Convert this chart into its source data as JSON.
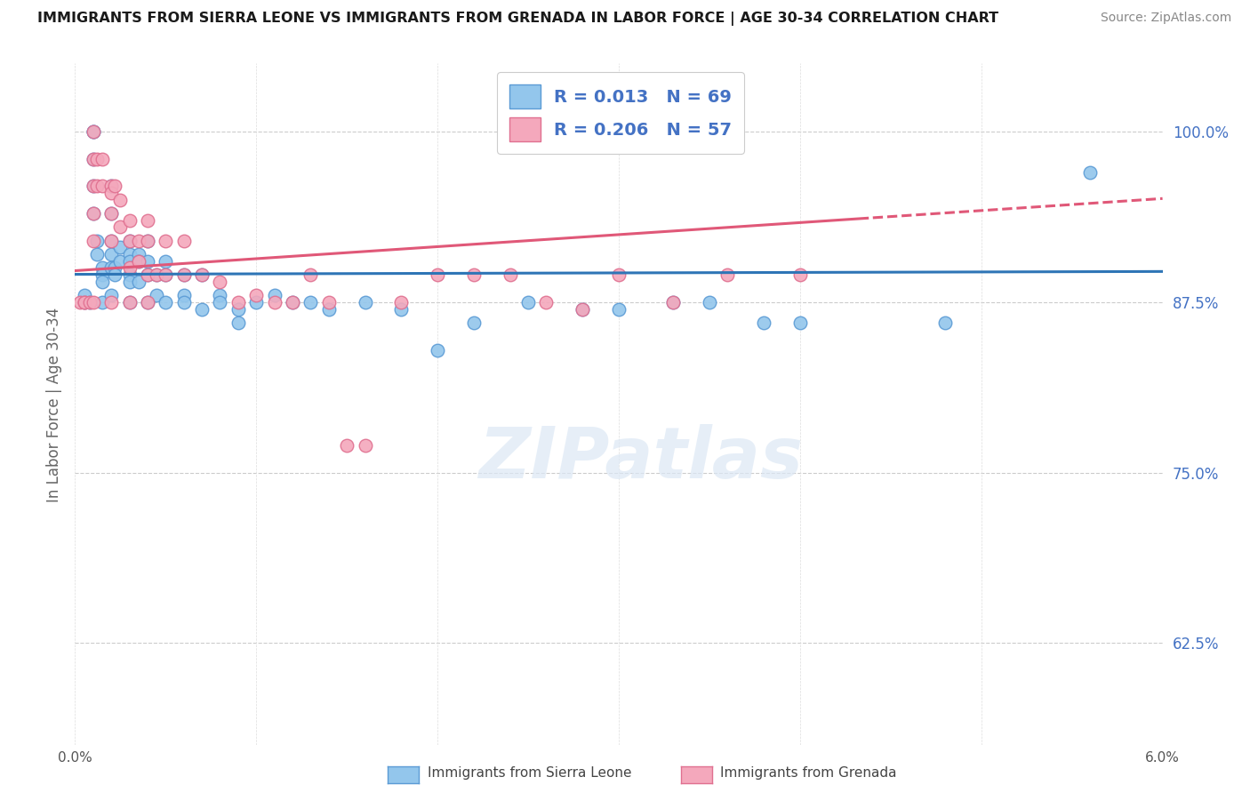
{
  "title": "IMMIGRANTS FROM SIERRA LEONE VS IMMIGRANTS FROM GRENADA IN LABOR FORCE | AGE 30-34 CORRELATION CHART",
  "source": "Source: ZipAtlas.com",
  "ylabel": "In Labor Force | Age 30-34",
  "ytick_labels": [
    "62.5%",
    "75.0%",
    "87.5%",
    "100.0%"
  ],
  "ytick_values": [
    0.625,
    0.75,
    0.875,
    1.0
  ],
  "xlim": [
    0.0,
    0.06
  ],
  "ylim": [
    0.55,
    1.05
  ],
  "watermark": "ZIPatlas",
  "legend_label1": "Immigrants from Sierra Leone",
  "legend_label2": "Immigrants from Grenada",
  "color_sierra": "#93C6EC",
  "color_grenada": "#F4A8BC",
  "edge_color_sierra": "#5B9BD5",
  "edge_color_grenada": "#E07090",
  "line_color_sierra": "#2E75B6",
  "line_color_grenada": "#E05878",
  "sierra_R": 0.013,
  "grenada_R": 0.206,
  "sierra_N": 69,
  "grenada_N": 57,
  "scatter_sierra_x": [
    0.0005,
    0.0005,
    0.0008,
    0.001,
    0.001,
    0.001,
    0.001,
    0.001,
    0.0012,
    0.0012,
    0.0015,
    0.0015,
    0.0015,
    0.0015,
    0.002,
    0.002,
    0.002,
    0.002,
    0.002,
    0.002,
    0.0022,
    0.0022,
    0.0025,
    0.0025,
    0.003,
    0.003,
    0.003,
    0.003,
    0.003,
    0.003,
    0.0035,
    0.0035,
    0.0035,
    0.004,
    0.004,
    0.004,
    0.004,
    0.0045,
    0.0045,
    0.005,
    0.005,
    0.005,
    0.006,
    0.006,
    0.006,
    0.007,
    0.007,
    0.008,
    0.008,
    0.009,
    0.009,
    0.01,
    0.011,
    0.012,
    0.013,
    0.014,
    0.016,
    0.018,
    0.02,
    0.022,
    0.025,
    0.028,
    0.03,
    0.033,
    0.035,
    0.038,
    0.04,
    0.048,
    0.056
  ],
  "scatter_sierra_y": [
    0.875,
    0.88,
    0.875,
    1.0,
    1.0,
    0.98,
    0.96,
    0.94,
    0.92,
    0.91,
    0.9,
    0.895,
    0.89,
    0.875,
    0.96,
    0.94,
    0.92,
    0.91,
    0.9,
    0.88,
    0.9,
    0.895,
    0.915,
    0.905,
    0.92,
    0.91,
    0.905,
    0.895,
    0.89,
    0.875,
    0.91,
    0.905,
    0.89,
    0.92,
    0.905,
    0.895,
    0.875,
    0.895,
    0.88,
    0.905,
    0.895,
    0.875,
    0.895,
    0.88,
    0.875,
    0.895,
    0.87,
    0.88,
    0.875,
    0.87,
    0.86,
    0.875,
    0.88,
    0.875,
    0.875,
    0.87,
    0.875,
    0.87,
    0.84,
    0.86,
    0.875,
    0.87,
    0.87,
    0.875,
    0.875,
    0.86,
    0.86,
    0.86,
    0.97
  ],
  "scatter_grenada_x": [
    0.0003,
    0.0005,
    0.0005,
    0.0008,
    0.001,
    0.001,
    0.001,
    0.001,
    0.001,
    0.001,
    0.0012,
    0.0012,
    0.0015,
    0.0015,
    0.002,
    0.002,
    0.002,
    0.002,
    0.002,
    0.0022,
    0.0025,
    0.0025,
    0.003,
    0.003,
    0.003,
    0.003,
    0.0035,
    0.0035,
    0.004,
    0.004,
    0.004,
    0.004,
    0.0045,
    0.005,
    0.005,
    0.006,
    0.006,
    0.007,
    0.008,
    0.009,
    0.01,
    0.011,
    0.012,
    0.013,
    0.014,
    0.015,
    0.016,
    0.018,
    0.02,
    0.022,
    0.024,
    0.026,
    0.028,
    0.03,
    0.033,
    0.036,
    0.04
  ],
  "scatter_grenada_y": [
    0.875,
    0.875,
    0.875,
    0.875,
    1.0,
    0.98,
    0.96,
    0.94,
    0.92,
    0.875,
    0.98,
    0.96,
    0.98,
    0.96,
    0.96,
    0.955,
    0.94,
    0.92,
    0.875,
    0.96,
    0.95,
    0.93,
    0.935,
    0.92,
    0.9,
    0.875,
    0.92,
    0.905,
    0.935,
    0.92,
    0.895,
    0.875,
    0.895,
    0.92,
    0.895,
    0.92,
    0.895,
    0.895,
    0.89,
    0.875,
    0.88,
    0.875,
    0.875,
    0.895,
    0.875,
    0.77,
    0.77,
    0.875,
    0.895,
    0.895,
    0.895,
    0.875,
    0.87,
    0.895,
    0.875,
    0.895,
    0.895
  ]
}
